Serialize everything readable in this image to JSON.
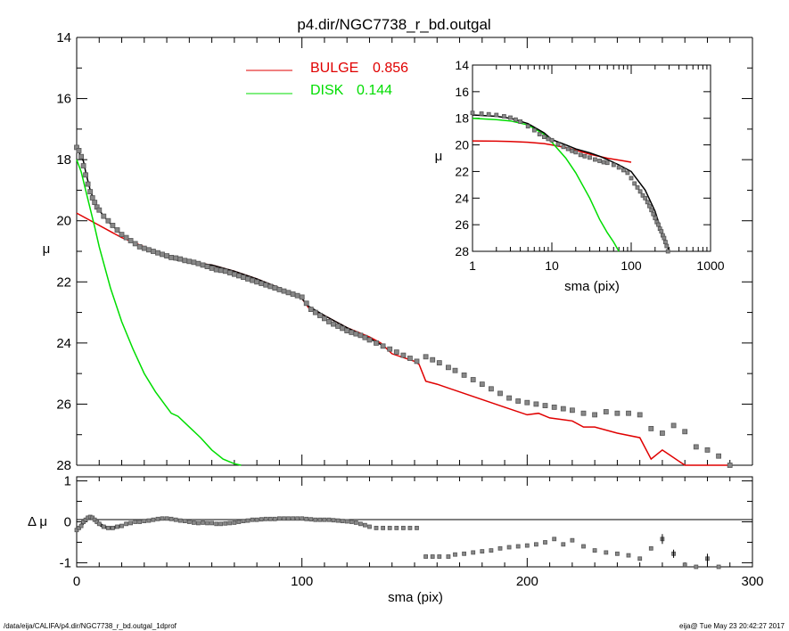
{
  "title": "p4.dir/NGC7738_r_bd.outgal",
  "footer": {
    "path": "/data/eija/CALIFA/p4.dir/NGC7738_r_bd.outgal_1dprof",
    "stamp": "eija@  Tue May 23 20:42:27 2017"
  },
  "colors": {
    "bulge": "#e00000",
    "disk": "#00dd00",
    "data_points": "#555555",
    "total_model": "#000000"
  },
  "chart_data": [
    {
      "id": "main",
      "type": "line",
      "xlabel": "",
      "ylabel": "μ",
      "xlim": [
        0,
        300
      ],
      "ylim": [
        28,
        14
      ],
      "y_inverted": true,
      "yticks": [
        "14",
        "16",
        "18",
        "20",
        "22",
        "24",
        "26",
        "28"
      ],
      "legend_position": "top-center",
      "series": [
        {
          "name": "BULGE",
          "value_label": "0.856",
          "kind": "line",
          "color": "#e00000",
          "x": [
            0,
            10,
            20,
            30,
            40,
            50,
            60,
            70,
            80,
            90,
            100,
            103,
            110,
            120,
            130,
            135,
            140,
            150,
            152,
            155,
            160,
            170,
            180,
            190,
            200,
            205,
            210,
            220,
            225,
            230,
            240,
            250,
            255,
            260,
            270,
            280,
            290
          ],
          "y": [
            19.75,
            20.15,
            20.55,
            20.85,
            21.15,
            21.35,
            21.45,
            21.65,
            21.9,
            22.2,
            22.55,
            22.85,
            23.1,
            23.5,
            23.8,
            24.0,
            24.35,
            24.6,
            24.7,
            25.25,
            25.35,
            25.6,
            25.85,
            26.1,
            26.35,
            26.3,
            26.45,
            26.55,
            26.75,
            26.75,
            26.95,
            27.1,
            27.8,
            27.5,
            28.3,
            28.6,
            28.8
          ]
        },
        {
          "name": "DISK",
          "value_label": "0.144",
          "kind": "line",
          "color": "#00dd00",
          "x": [
            0,
            2,
            5,
            8,
            10,
            15,
            20,
            25,
            30,
            35,
            40,
            42,
            45,
            50,
            55,
            60,
            65,
            70,
            73
          ],
          "y": [
            18.0,
            18.4,
            19.3,
            20.2,
            20.85,
            22.2,
            23.3,
            24.2,
            25.0,
            25.6,
            26.1,
            26.3,
            26.4,
            26.75,
            27.1,
            27.5,
            27.8,
            27.95,
            28.1
          ]
        },
        {
          "name": "",
          "kind": "line",
          "color": "#000000",
          "x": [
            0,
            1,
            2,
            3,
            4,
            5,
            6,
            8,
            10,
            12,
            15,
            20,
            25,
            30,
            35,
            40,
            45,
            50,
            60,
            70,
            80,
            90,
            100,
            103,
            110,
            120,
            130,
            135
          ],
          "y": [
            17.7,
            17.75,
            17.9,
            18.05,
            18.4,
            18.7,
            19.0,
            19.4,
            19.65,
            19.85,
            20.1,
            20.45,
            20.7,
            20.9,
            21.05,
            21.2,
            21.3,
            21.35,
            21.45,
            21.65,
            21.9,
            22.2,
            22.55,
            22.8,
            23.1,
            23.5,
            23.85,
            24.05
          ]
        },
        {
          "name": "",
          "kind": "markers",
          "color": "#555555",
          "x": [
            0,
            1,
            2,
            3,
            4,
            5,
            6,
            7,
            8,
            9,
            10,
            12,
            14,
            16,
            18,
            20,
            22,
            24,
            26,
            28,
            30,
            32,
            34,
            36,
            38,
            40,
            42,
            44,
            46,
            48,
            50,
            52,
            54,
            56,
            58,
            60,
            62,
            64,
            66,
            68,
            70,
            72,
            74,
            76,
            78,
            80,
            82,
            84,
            86,
            88,
            90,
            92,
            94,
            96,
            98,
            100,
            102,
            104,
            106,
            108,
            110,
            112,
            114,
            116,
            118,
            120,
            122,
            124,
            126,
            128,
            130,
            133,
            136,
            139,
            142,
            145,
            148,
            151,
            155,
            158,
            161,
            165,
            168,
            172,
            176,
            180,
            184,
            188,
            192,
            196,
            200,
            204,
            208,
            212,
            216,
            220,
            225,
            230,
            235,
            240,
            245,
            250,
            255,
            260,
            265,
            270,
            275,
            280,
            285,
            290
          ],
          "y": [
            17.6,
            17.7,
            17.9,
            18.2,
            18.5,
            18.8,
            19.05,
            19.25,
            19.4,
            19.55,
            19.65,
            19.85,
            20.0,
            20.15,
            20.3,
            20.45,
            20.55,
            20.65,
            20.75,
            20.85,
            20.9,
            20.95,
            21.0,
            21.05,
            21.1,
            21.15,
            21.2,
            21.22,
            21.25,
            21.3,
            21.33,
            21.36,
            21.4,
            21.45,
            21.5,
            21.55,
            21.6,
            21.62,
            21.65,
            21.7,
            21.75,
            21.8,
            21.85,
            21.9,
            21.95,
            22.0,
            22.05,
            22.1,
            22.15,
            22.2,
            22.25,
            22.3,
            22.35,
            22.4,
            22.45,
            22.5,
            22.7,
            22.9,
            23.0,
            23.1,
            23.2,
            23.3,
            23.38,
            23.45,
            23.52,
            23.6,
            23.65,
            23.7,
            23.75,
            23.82,
            23.9,
            24.0,
            24.1,
            24.2,
            24.3,
            24.4,
            24.5,
            24.6,
            24.45,
            24.55,
            24.65,
            24.8,
            24.9,
            25.05,
            25.2,
            25.35,
            25.5,
            25.65,
            25.8,
            25.9,
            25.95,
            26.0,
            26.05,
            26.1,
            26.15,
            26.2,
            26.3,
            26.35,
            26.25,
            26.3,
            26.3,
            26.35,
            26.8,
            26.95,
            26.7,
            26.9,
            27.4,
            27.5,
            27.7,
            28.0
          ]
        }
      ]
    },
    {
      "id": "residual",
      "type": "scatter",
      "xlabel": "sma (pix)",
      "ylabel": "Δ μ",
      "xlim": [
        0,
        300
      ],
      "ylim": [
        -1.1,
        1.1
      ],
      "xticks": [
        "0",
        "100",
        "200",
        "300"
      ],
      "yticks": [
        "-1",
        "0",
        "1"
      ],
      "zero_line": true,
      "series": [
        {
          "name": "",
          "kind": "markers",
          "color": "#555555",
          "x": [
            0,
            1,
            2,
            3,
            4,
            5,
            6,
            7,
            8,
            9,
            10,
            12,
            14,
            16,
            18,
            20,
            22,
            24,
            26,
            28,
            30,
            32,
            34,
            36,
            38,
            40,
            42,
            44,
            46,
            48,
            50,
            52,
            54,
            56,
            58,
            60,
            62,
            64,
            66,
            68,
            70,
            72,
            74,
            76,
            78,
            80,
            82,
            84,
            86,
            88,
            90,
            92,
            94,
            96,
            98,
            100,
            102,
            104,
            106,
            108,
            110,
            112,
            114,
            116,
            118,
            120,
            122,
            124,
            126,
            128,
            130,
            133,
            136,
            139,
            142,
            145,
            148,
            151,
            155,
            158,
            161,
            165,
            168,
            172,
            176,
            180,
            184,
            188,
            192,
            196,
            200,
            204,
            208,
            212,
            216,
            220,
            225,
            230,
            235,
            240,
            245,
            250,
            255,
            260,
            265,
            270,
            275,
            280,
            285,
            290
          ],
          "y": [
            -0.2,
            -0.15,
            -0.1,
            0.0,
            0.05,
            0.1,
            0.12,
            0.1,
            0.05,
            0.0,
            -0.05,
            -0.12,
            -0.15,
            -0.15,
            -0.12,
            -0.1,
            -0.05,
            -0.03,
            0.0,
            0.0,
            0.02,
            0.03,
            0.05,
            0.07,
            0.08,
            0.08,
            0.07,
            0.05,
            0.03,
            0.02,
            0.0,
            -0.02,
            -0.03,
            -0.02,
            -0.03,
            -0.03,
            -0.05,
            -0.05,
            -0.04,
            -0.03,
            -0.02,
            0.0,
            0.02,
            0.03,
            0.05,
            0.05,
            0.06,
            0.07,
            0.07,
            0.07,
            0.08,
            0.08,
            0.08,
            0.08,
            0.08,
            0.08,
            0.07,
            0.06,
            0.05,
            0.05,
            0.05,
            0.05,
            0.04,
            0.03,
            0.02,
            0.01,
            0.0,
            -0.02,
            -0.05,
            -0.08,
            -0.12,
            -0.15,
            -0.15,
            -0.15,
            -0.15,
            -0.15,
            -0.15,
            -0.15,
            -0.85,
            -0.85,
            -0.85,
            -0.85,
            -0.8,
            -0.78,
            -0.75,
            -0.72,
            -0.7,
            -0.65,
            -0.62,
            -0.6,
            -0.58,
            -0.55,
            -0.5,
            -0.42,
            -0.55,
            -0.45,
            -0.6,
            -0.7,
            -0.75,
            -0.78,
            -0.82,
            -0.9,
            -0.65,
            -0.42,
            -0.78,
            -1.05,
            -1.1,
            -0.9,
            -1.1,
            -1.15
          ],
          "error_bars": {
            "x": [
              260,
              265,
              280
            ],
            "yerr": [
              0.12,
              0.1,
              0.12
            ]
          }
        }
      ]
    },
    {
      "id": "inset",
      "type": "line",
      "x_scale": "log",
      "xlabel": "sma (pix)",
      "ylabel": "μ",
      "xlim": [
        1,
        1000
      ],
      "ylim": [
        28,
        14
      ],
      "y_inverted": true,
      "xticks": [
        "1",
        "10",
        "100",
        "1000"
      ],
      "yticks": [
        "14",
        "16",
        "18",
        "20",
        "22",
        "24",
        "26",
        "28"
      ],
      "series": [
        {
          "name": "",
          "kind": "line",
          "color": "#e00000",
          "x": [
            1,
            2,
            3,
            5,
            8,
            10,
            15,
            20,
            30,
            50,
            80,
            100
          ],
          "y": [
            19.7,
            19.72,
            19.75,
            19.8,
            19.9,
            20.0,
            20.2,
            20.4,
            20.7,
            21.0,
            21.2,
            21.3
          ]
        },
        {
          "name": "",
          "kind": "line",
          "color": "#00dd00",
          "x": [
            1,
            2,
            3,
            5,
            8,
            10,
            15,
            20,
            30,
            40,
            50,
            60,
            70
          ],
          "y": [
            18.0,
            18.1,
            18.2,
            18.5,
            19.2,
            19.8,
            21.0,
            22.1,
            24.0,
            25.6,
            26.6,
            27.3,
            28.0
          ]
        },
        {
          "name": "",
          "kind": "line",
          "color": "#000000",
          "x": [
            1,
            2,
            3,
            5,
            8,
            10,
            15,
            20,
            30,
            40,
            50,
            70,
            100,
            150,
            200,
            250,
            280,
            300
          ],
          "y": [
            17.75,
            17.85,
            18.0,
            18.4,
            19.1,
            19.6,
            20.0,
            20.3,
            20.6,
            20.85,
            21.1,
            21.5,
            22.0,
            23.4,
            25.0,
            26.8,
            27.5,
            28.0
          ]
        },
        {
          "name": "",
          "kind": "markers",
          "color": "#555555",
          "x": [
            1,
            1.3,
            1.6,
            2,
            2.5,
            3,
            3.5,
            4,
            5,
            6,
            7,
            8,
            9,
            10,
            12,
            14,
            16,
            18,
            20,
            23,
            26,
            30,
            35,
            40,
            45,
            50,
            60,
            70,
            80,
            90,
            100,
            110,
            120,
            130,
            140,
            150,
            160,
            170,
            180,
            190,
            200,
            210,
            220,
            230,
            240,
            250,
            260,
            270,
            280,
            290
          ],
          "y": [
            17.6,
            17.65,
            17.7,
            17.75,
            17.85,
            17.95,
            18.1,
            18.25,
            18.6,
            18.9,
            19.2,
            19.4,
            19.55,
            19.65,
            19.95,
            20.15,
            20.3,
            20.45,
            20.55,
            20.75,
            20.85,
            20.95,
            21.1,
            21.2,
            21.3,
            21.35,
            21.5,
            21.7,
            21.9,
            22.1,
            22.5,
            22.9,
            23.2,
            23.5,
            23.8,
            24.0,
            24.3,
            24.6,
            24.9,
            25.2,
            25.5,
            25.8,
            26.0,
            26.3,
            26.5,
            26.8,
            27.0,
            27.3,
            27.6,
            28.0
          ]
        }
      ]
    }
  ]
}
